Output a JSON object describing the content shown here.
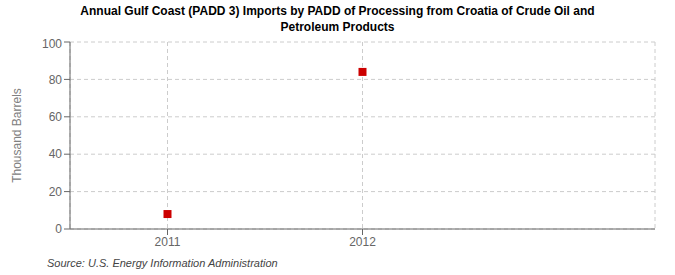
{
  "chart_data": {
    "type": "scatter",
    "title": "Annual Gulf Coast (PADD 3) Imports by PADD of Processing from Croatia of Crude Oil and\nPetroleum Products",
    "ylabel": "Thousand Barrels",
    "annotation": "Source: U.S. Energy Information Administration",
    "x": [
      2011,
      2012
    ],
    "values": [
      8,
      84
    ],
    "color": "#cc0000",
    "marker": "square",
    "xlim": [
      2010.5,
      2013.5
    ],
    "ylim": [
      0,
      100
    ],
    "xticks": [
      2011,
      2012
    ],
    "yticks": [
      0,
      20,
      40,
      60,
      80,
      100
    ],
    "grid": true
  }
}
